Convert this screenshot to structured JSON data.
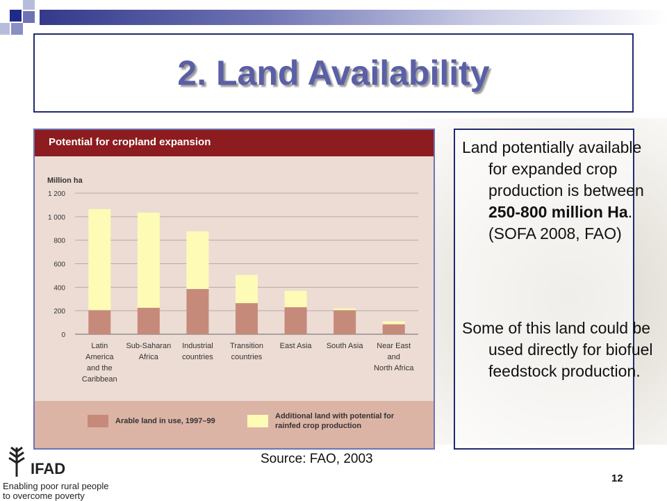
{
  "slide": {
    "title": "2. Land Availability",
    "source": "Source: FAO, 2003",
    "page_number": "12"
  },
  "logo": {
    "name": "IFAD",
    "tagline_1": "Enabling poor rural people",
    "tagline_2": "to overcome poverty"
  },
  "text_box": {
    "para1_part1": "Land potentially available for expanded crop production is between ",
    "para1_bold": "250-800 million Ha",
    "para1_part2": ". (SOFA 2008, FAO)",
    "para2": "Some of this land could be used directly for biofuel feedstock production."
  },
  "colors": {
    "accent": "#5a5fa6",
    "chart_header": "#8c1c1f",
    "arable": "#c68a7a",
    "additional": "#fdfbb6"
  },
  "chart_data": {
    "type": "bar",
    "title": "Potential for cropland expansion",
    "ylabel": "Million ha",
    "ylim": [
      0,
      1200
    ],
    "yticks": [
      0,
      200,
      400,
      600,
      800,
      1000,
      1200
    ],
    "ytick_labels": [
      "0",
      "200",
      "400",
      "600",
      "800",
      "1 000",
      "1 200"
    ],
    "stacked": true,
    "grid": true,
    "legend_position": "bottom",
    "categories": [
      [
        "Latin",
        "America",
        "and the",
        "Caribbean"
      ],
      [
        "Sub-Saharan",
        "Africa"
      ],
      [
        "Industrial",
        "countries"
      ],
      [
        "Transition",
        "countries"
      ],
      [
        "East Asia"
      ],
      [
        "South Asia"
      ],
      [
        "Near East",
        "and",
        "North Africa"
      ]
    ],
    "series": [
      {
        "name": "Arable land in use, 1997–99",
        "values": [
          205,
          225,
          385,
          265,
          230,
          205,
          85
        ]
      },
      {
        "name": "Additional land with potential for rainfed crop production",
        "values": [
          860,
          810,
          490,
          240,
          140,
          15,
          25
        ]
      }
    ]
  }
}
